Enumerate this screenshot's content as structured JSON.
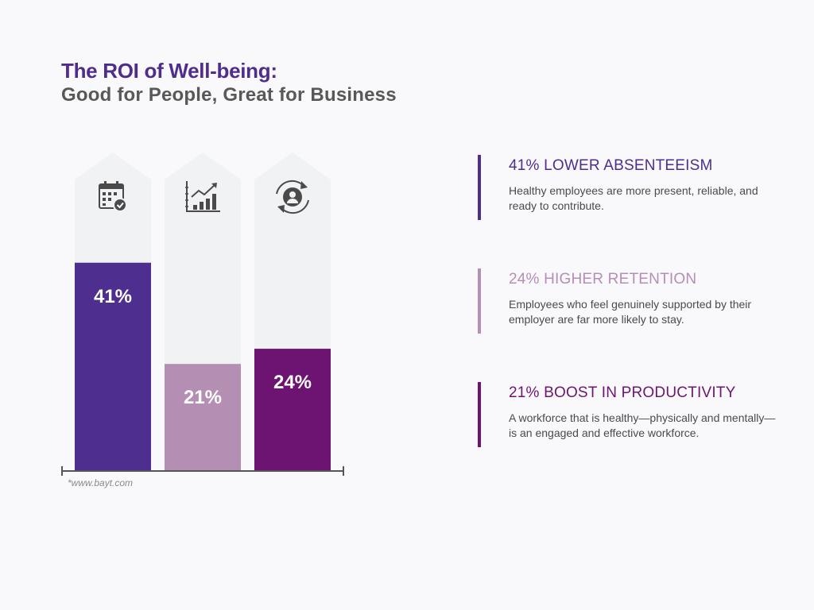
{
  "header": {
    "title": "The ROI of Well-being:",
    "subtitle": "Good for People, Great for Business"
  },
  "chart_data": {
    "type": "bar",
    "categories": [
      "Lower Absenteeism",
      "Boost in Productivity",
      "Higher Retention"
    ],
    "values": [
      41,
      21,
      24
    ],
    "value_labels": [
      "41%",
      "21%",
      "24%"
    ],
    "icons": [
      "calendar-check-icon",
      "growth-chart-icon",
      "user-cycle-icon"
    ],
    "colors": [
      "#4e2e8e",
      "#b58fb3",
      "#6d1473"
    ],
    "column_background": "#f1f2f4",
    "ylim": [
      0,
      70
    ],
    "title": "",
    "xlabel": "",
    "ylabel": ""
  },
  "source": "*www.bayt.com",
  "stats": [
    {
      "heading": "41% LOWER ABSENTEEISM",
      "text": "Healthy employees are more present, reliable, and ready to contribute.",
      "color": "#4f2d8c"
    },
    {
      "heading": "24% HIGHER RETENTION",
      "text": "Employees who feel genuinely supported by their employer are far more likely to stay.",
      "color": "#b68db6"
    },
    {
      "heading": "21% BOOST IN PRODUCTIVITY",
      "text": "A workforce that is healthy—physically and mentally—is an engaged and effective workforce.",
      "color": "#6d1473"
    }
  ]
}
